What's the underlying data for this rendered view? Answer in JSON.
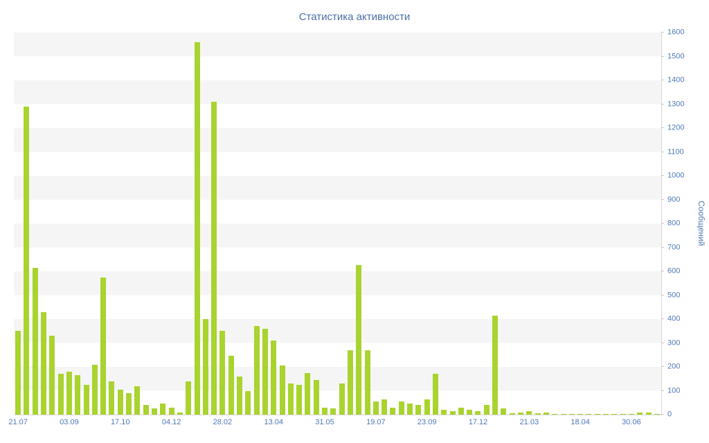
{
  "chart_data": {
    "type": "bar",
    "title": "Статистика активности",
    "ylabel": "Сообщений",
    "xlabel": "",
    "ylim": [
      0,
      1600
    ],
    "y_tick_step": 100,
    "bar_color": "#a9d32e",
    "axis_text_color": "#4f77b5",
    "title_color": "#4a6fa5",
    "stripe_color": "#f5f5f5",
    "legend": "none",
    "grid": "striped-bands",
    "x_tick_labels": [
      "21.07",
      "03.09",
      "17.10",
      "04.12",
      "28.02",
      "13.04",
      "31.05",
      "19.07",
      "23.09",
      "17.12",
      "21.03",
      "18.04",
      "30.06"
    ],
    "x_tick_indices": [
      0,
      6,
      12,
      18,
      24,
      30,
      36,
      42,
      48,
      54,
      60,
      66,
      72
    ],
    "values": [
      350,
      1290,
      615,
      430,
      330,
      170,
      180,
      165,
      125,
      210,
      575,
      140,
      105,
      90,
      120,
      40,
      25,
      45,
      30,
      10,
      140,
      1560,
      400,
      1310,
      350,
      245,
      160,
      100,
      370,
      360,
      310,
      205,
      130,
      125,
      175,
      145,
      30,
      25,
      130,
      270,
      625,
      270,
      55,
      65,
      30,
      55,
      45,
      40,
      65,
      170,
      20,
      15,
      30,
      20,
      15,
      40,
      415,
      25,
      5,
      10,
      15,
      5,
      8,
      4,
      4,
      3,
      3,
      3,
      2,
      3,
      2,
      3,
      2,
      10,
      8,
      3
    ]
  }
}
